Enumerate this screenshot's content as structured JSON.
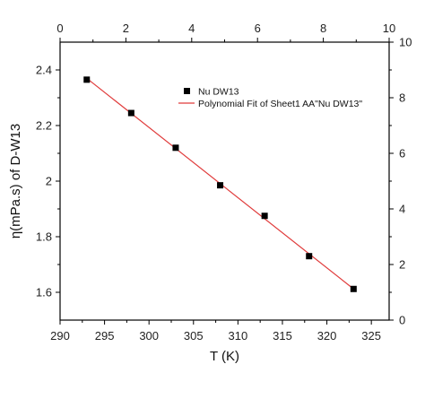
{
  "chart_data": {
    "type": "scatter",
    "xlabel": "T (K)",
    "ylabel": "η(mPa.s) of D-W13",
    "xlim": [
      290,
      327
    ],
    "ylim": [
      1.5,
      2.5
    ],
    "x_ticks": [
      290,
      295,
      300,
      305,
      310,
      315,
      320,
      325
    ],
    "y_ticks": [
      1.6,
      1.8,
      2.0,
      2.2,
      2.4
    ],
    "y_tick_labels": [
      "1.6",
      "1.8",
      "2",
      "2.2",
      "2.4"
    ],
    "top_axis": {
      "lim": [
        0,
        10
      ],
      "ticks": [
        0,
        2,
        4,
        6,
        8,
        10
      ]
    },
    "right_axis": {
      "lim": [
        0,
        10
      ],
      "ticks": [
        0,
        2,
        4,
        6,
        8,
        10
      ]
    },
    "grid": false,
    "legend_position": "top-right",
    "series": [
      {
        "name": "Nu DW13",
        "type": "scatter",
        "color": "#000000",
        "x": [
          293,
          298,
          303,
          308,
          313,
          318,
          323
        ],
        "y": [
          2.365,
          2.245,
          2.12,
          1.985,
          1.875,
          1.73,
          1.612
        ]
      },
      {
        "name": "Polynomial Fit of Sheet1 AA\"Nu DW13\"",
        "type": "line",
        "color": "#e03b3b",
        "x": [
          293,
          323
        ],
        "y": [
          2.37,
          1.612
        ]
      }
    ]
  }
}
